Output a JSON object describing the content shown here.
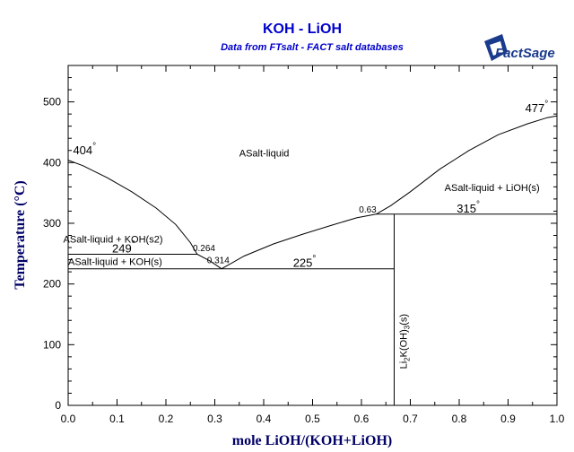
{
  "header": {
    "title": "KOH - LiOH",
    "subtitle": "Data from FTsalt - FACT salt databases",
    "logo_text": "FactSage"
  },
  "chart_data": {
    "type": "line",
    "title": "KOH - LiOH",
    "subtitle": "Data from FTsalt - FACT salt databases",
    "xlabel": "mole LiOH/(KOH+LiOH)",
    "ylabel": "Temperature (°C)",
    "xlim": [
      0,
      1
    ],
    "ylim": [
      0,
      560
    ],
    "xticks": [
      0.0,
      0.1,
      0.2,
      0.3,
      0.4,
      0.5,
      0.6,
      0.7,
      0.8,
      0.9,
      1.0
    ],
    "xtick_labels": [
      "0.0",
      "0.1",
      "0.2",
      "0.3",
      "0.4",
      "0.5",
      "0.6",
      "0.7",
      "0.8",
      "0.9",
      "1.0"
    ],
    "yticks": [
      0,
      100,
      200,
      300,
      400,
      500
    ],
    "ytick_labels": [
      "0",
      "100",
      "200",
      "300",
      "400",
      "500"
    ],
    "grid": false,
    "colors": {
      "title": "#0000cc",
      "axis_title": "#000066",
      "lines": "#000000"
    },
    "series": [
      {
        "points": [
          [
            0,
            404
          ],
          [
            0.03,
            395
          ],
          [
            0.08,
            375
          ],
          [
            0.13,
            352
          ],
          [
            0.18,
            325
          ],
          [
            0.22,
            298
          ],
          [
            0.25,
            268
          ],
          [
            0.264,
            249
          ],
          [
            0.29,
            238
          ],
          [
            0.314,
            225
          ]
        ]
      },
      {
        "points": [
          [
            0.314,
            225
          ],
          [
            0.36,
            246
          ],
          [
            0.42,
            266
          ],
          [
            0.48,
            282
          ],
          [
            0.54,
            297
          ],
          [
            0.59,
            309
          ],
          [
            0.63,
            315
          ]
        ]
      },
      {
        "points": [
          [
            0.63,
            315
          ],
          [
            0.66,
            329
          ],
          [
            0.7,
            352
          ],
          [
            0.76,
            389
          ],
          [
            0.82,
            420
          ],
          [
            0.88,
            446
          ],
          [
            0.94,
            464
          ],
          [
            0.98,
            474
          ],
          [
            1.0,
            477
          ]
        ]
      },
      {
        "points": [
          [
            0,
            249
          ],
          [
            0.264,
            249
          ]
        ]
      },
      {
        "points": [
          [
            0,
            225
          ],
          [
            0.667,
            225
          ]
        ]
      },
      {
        "points": [
          [
            0.63,
            315
          ],
          [
            1.0,
            315
          ]
        ]
      },
      {
        "points": [
          [
            0.667,
            0
          ],
          [
            0.667,
            315
          ]
        ]
      }
    ],
    "annotations": {
      "t404": {
        "text": "404",
        "x": 0.01,
        "y": 414
      },
      "t249": {
        "text": "249",
        "x": 0.09,
        "y": 252
      },
      "t225": {
        "text": "225",
        "x": 0.46,
        "y": 228
      },
      "t315": {
        "text": "315",
        "x": 0.795,
        "y": 318
      },
      "t477": {
        "text": "477",
        "x": 0.935,
        "y": 483
      },
      "c0264": {
        "text": "0.264",
        "x": 0.255,
        "y": 254
      },
      "c0314": {
        "text": "0.314",
        "x": 0.284,
        "y": 234
      },
      "c063": {
        "text": "0.63",
        "x": 0.595,
        "y": 318
      },
      "r_liquid": {
        "text": "ASalt-liquid",
        "x": 0.35,
        "y": 410
      },
      "r_liquid_lioh": {
        "text": "ASalt-liquid + LiOH(s)",
        "x": 0.77,
        "y": 353
      },
      "r_liquid_koh_s2": {
        "text": "ASalt-liquid + KOH(s2)",
        "x": -0.01,
        "y": 268
      },
      "r_liquid_koh_s": {
        "text": "ASalt-liquid + KOH(s)",
        "x": 0.0,
        "y": 231
      },
      "compound_main": {
        "text": "Li",
        "x": 0.693,
        "y": 60
      },
      "compound_sub2": {
        "text": "2"
      },
      "compound_mid": {
        "text": "K(OH)"
      },
      "compound_sub3": {
        "text": "3"
      },
      "compound_end": {
        "text": "(s)"
      }
    },
    "degree_symbol": "°"
  }
}
